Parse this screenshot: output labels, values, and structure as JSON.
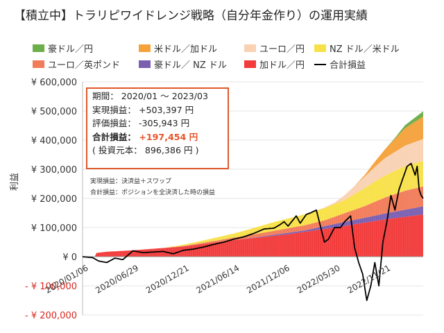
{
  "title": "【積立中】トラリピワイドレンジ戦略（自分年金作り）の運用実績",
  "legend": [
    {
      "label": "豪ドル／円",
      "color": "#6cae4a",
      "kind": "area"
    },
    {
      "label": "米ドル／加ドル",
      "color": "#f5a23b",
      "kind": "area"
    },
    {
      "label": "ユーロ／円",
      "color": "#f9d2b4",
      "kind": "area"
    },
    {
      "label": "NZ ドル／米ドル",
      "color": "#f7e14a",
      "kind": "area"
    },
    {
      "label": "ユーロ／英ポンド",
      "color": "#f27c5a",
      "kind": "area"
    },
    {
      "label": "豪ドル／ NZ ドル",
      "color": "#7a5fb0",
      "kind": "area"
    },
    {
      "label": "加ドル／円",
      "color": "#f23b3b",
      "kind": "area"
    },
    {
      "label": "合計損益",
      "color": "#000000",
      "kind": "line"
    }
  ],
  "info": {
    "period": "期間： 2020/01 ～ 2023/03",
    "realized": "実現損益： +503,397 円",
    "unrealized": "評価損益： -305,943 円",
    "total_label": "合計損益：",
    "total_value": "+197,454 円",
    "principal": "( 投資元本： 896,386 円 )"
  },
  "notes": [
    "実現損益：決済益＋スワップ",
    "合計損益：ポジションを全決済した時の損益"
  ],
  "chart_data": {
    "type": "area",
    "ylabel": "利益",
    "ylim": [
      -200000,
      600000
    ],
    "y_ticks": [
      {
        "value": 600000,
        "label": "¥ 600,000"
      },
      {
        "value": 500000,
        "label": "¥ 500,000"
      },
      {
        "value": 400000,
        "label": "¥ 400,000"
      },
      {
        "value": 300000,
        "label": "¥ 300,000"
      },
      {
        "value": 200000,
        "label": "¥ 200,000"
      },
      {
        "value": 100000,
        "label": "¥ 100,000"
      },
      {
        "value": 0,
        "label": "¥ 0"
      },
      {
        "value": -100000,
        "label": "- ¥ 100,000"
      },
      {
        "value": -200000,
        "label": "- ¥ 200,000"
      }
    ],
    "negative_tick_color": "#d9251d",
    "x_ticks": [
      "2020/01/06",
      "2020/06/29",
      "2020/12/21",
      "2021/06/14",
      "2021/12/06",
      "2022/05/30",
      "2022/11/21"
    ],
    "x_tick_index": [
      0,
      25,
      50,
      75,
      100,
      125,
      150
    ],
    "n_points": 170,
    "stack_keypoints": [
      {
        "name": "加ドル／円",
        "color": "#f23b3b",
        "points": [
          [
            0,
            0
          ],
          [
            6,
            0
          ],
          [
            7,
            13000
          ],
          [
            12,
            17000
          ],
          [
            25,
            22000
          ],
          [
            50,
            35000
          ],
          [
            75,
            57000
          ],
          [
            100,
            75000
          ],
          [
            125,
            100000
          ],
          [
            150,
            128000
          ],
          [
            169,
            145000
          ]
        ]
      },
      {
        "name": "豪ドル／ NZ ドル",
        "color": "#7a5fb0",
        "points": [
          [
            0,
            0
          ],
          [
            80,
            0
          ],
          [
            100,
            5000
          ],
          [
            110,
            5000
          ],
          [
            125,
            12000
          ],
          [
            150,
            20000
          ],
          [
            169,
            28000
          ]
        ]
      },
      {
        "name": "ユーロ／英ポンド",
        "color": "#f27c5a",
        "points": [
          [
            0,
            0
          ],
          [
            40,
            0
          ],
          [
            60,
            4000
          ],
          [
            80,
            10000
          ],
          [
            100,
            15000
          ],
          [
            120,
            20000
          ],
          [
            140,
            40000
          ],
          [
            150,
            55000
          ],
          [
            160,
            65000
          ],
          [
            169,
            68000
          ]
        ]
      },
      {
        "name": "NZ ドル／米ドル",
        "color": "#f7e14a",
        "points": [
          [
            0,
            0
          ],
          [
            40,
            0
          ],
          [
            50,
            4000
          ],
          [
            75,
            14000
          ],
          [
            95,
            30000
          ],
          [
            115,
            40000
          ],
          [
            130,
            45000
          ],
          [
            145,
            70000
          ],
          [
            160,
            85000
          ],
          [
            169,
            88000
          ]
        ]
      },
      {
        "name": "ユーロ／円",
        "color": "#f9d2b4",
        "points": [
          [
            0,
            0
          ],
          [
            115,
            0
          ],
          [
            125,
            5000
          ],
          [
            140,
            40000
          ],
          [
            150,
            60000
          ],
          [
            160,
            70000
          ],
          [
            169,
            75000
          ]
        ]
      },
      {
        "name": "米ドル／加ドル",
        "color": "#f5a23b",
        "points": [
          [
            0,
            0
          ],
          [
            135,
            0
          ],
          [
            140,
            5000
          ],
          [
            150,
            30000
          ],
          [
            160,
            60000
          ],
          [
            169,
            77000
          ]
        ]
      },
      {
        "name": "豪ドル／円",
        "color": "#6cae4a",
        "points": [
          [
            0,
            0
          ],
          [
            150,
            0
          ],
          [
            155,
            3000
          ],
          [
            160,
            10000
          ],
          [
            169,
            18000
          ]
        ]
      }
    ],
    "total_line": {
      "name": "合計損益",
      "color": "#000000",
      "points": [
        [
          0,
          0
        ],
        [
          5,
          -3000
        ],
        [
          8,
          -15000
        ],
        [
          12,
          -20000
        ],
        [
          16,
          -5000
        ],
        [
          20,
          -10000
        ],
        [
          25,
          20000
        ],
        [
          30,
          14000
        ],
        [
          35,
          16000
        ],
        [
          40,
          18000
        ],
        [
          45,
          10000
        ],
        [
          50,
          22000
        ],
        [
          55,
          26000
        ],
        [
          60,
          33000
        ],
        [
          65,
          42000
        ],
        [
          70,
          50000
        ],
        [
          75,
          60000
        ],
        [
          80,
          68000
        ],
        [
          85,
          80000
        ],
        [
          90,
          95000
        ],
        [
          95,
          98000
        ],
        [
          98,
          110000
        ],
        [
          100,
          120000
        ],
        [
          102,
          105000
        ],
        [
          106,
          140000
        ],
        [
          108,
          115000
        ],
        [
          111,
          145000
        ],
        [
          113,
          150000
        ],
        [
          116,
          160000
        ],
        [
          118,
          105000
        ],
        [
          120,
          50000
        ],
        [
          122,
          60000
        ],
        [
          125,
          100000
        ],
        [
          128,
          100000
        ],
        [
          130,
          120000
        ],
        [
          133,
          140000
        ],
        [
          135,
          30000
        ],
        [
          137,
          -20000
        ],
        [
          139,
          -60000
        ],
        [
          141,
          -150000
        ],
        [
          143,
          -100000
        ],
        [
          145,
          -20000
        ],
        [
          147,
          -100000
        ],
        [
          149,
          50000
        ],
        [
          151,
          120000
        ],
        [
          153,
          210000
        ],
        [
          155,
          160000
        ],
        [
          157,
          230000
        ],
        [
          159,
          270000
        ],
        [
          161,
          310000
        ],
        [
          163,
          320000
        ],
        [
          165,
          280000
        ],
        [
          166,
          310000
        ],
        [
          167,
          230000
        ],
        [
          168,
          210000
        ],
        [
          169,
          200000
        ]
      ]
    }
  }
}
